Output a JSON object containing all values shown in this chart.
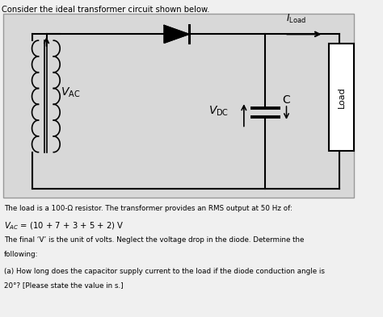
{
  "title": "Consider the ideal transformer circuit shown below.",
  "background_color": "#f0f0f0",
  "circuit_bg": "#d8d8d8",
  "text_line1": "The load is a 100-Ω resistor. The transformer provides an RMS output at 50 Hz of:",
  "text_line2": "VAC = (10 + 7 + 3 + 5 + 2) V",
  "text_line3": "The final V is the unit of volts. Neglect the voltage drop in the diode. Determine the",
  "text_line4": "following:",
  "text_line5": "(a) How long does the capacitor supply current to the load if the diode conduction angle is",
  "text_line6": "20°? [Please state the value in s.]",
  "c_label": "C",
  "load_label": "Load"
}
